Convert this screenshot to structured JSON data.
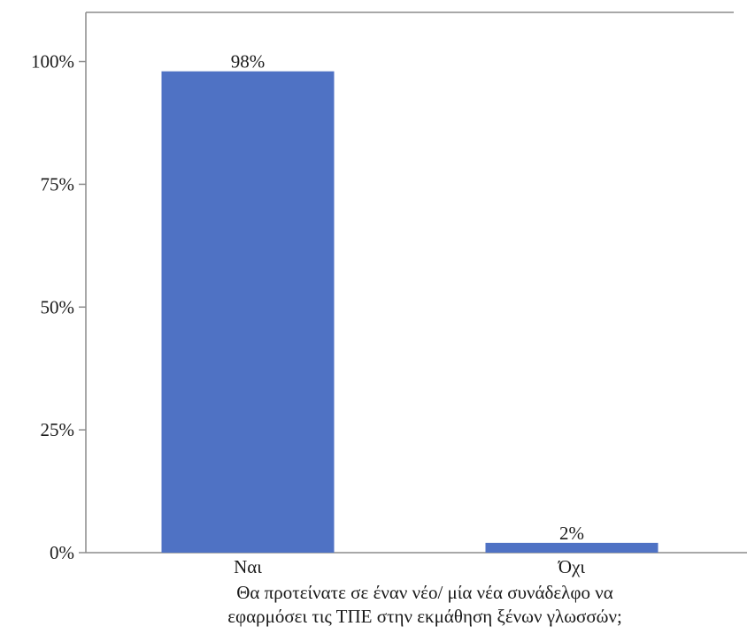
{
  "chart_data": {
    "type": "bar",
    "categories": [
      "Ναι",
      "Όχι"
    ],
    "values": [
      98,
      2
    ],
    "data_labels": [
      "98%",
      "2%"
    ],
    "y_ticks": [
      0,
      25,
      50,
      75,
      100
    ],
    "y_tick_labels": [
      "0%",
      "25%",
      "50%",
      "75%",
      "100%"
    ],
    "ylim": [
      0,
      110
    ],
    "xlabel_lines": [
      "Θα προτείνατε σε έναν νέο/ μία νέα συνάδελφο να",
      "εφαρμόσει τις ΤΠΕ στην εκμάθηση ξένων γλωσσών;"
    ],
    "colors": {
      "bar": "#4F72C4",
      "axis": "#8c8c8c"
    },
    "grid": false,
    "legend": "none"
  }
}
